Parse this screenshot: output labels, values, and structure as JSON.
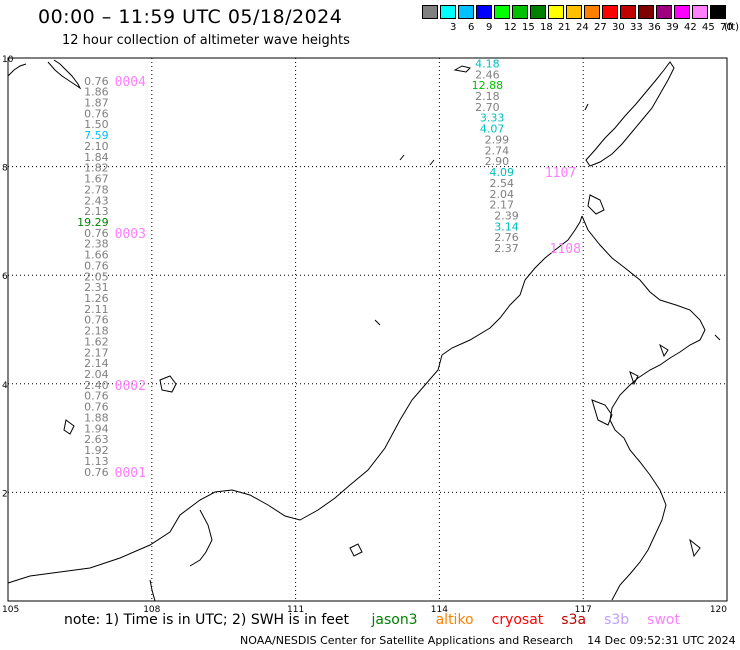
{
  "header": {
    "title": "00:00 – 11:59 UTC 05/18/2024",
    "subtitle": "12 hour collection of altimeter wave heights"
  },
  "scale": {
    "unit": "(ft)",
    "bins": [
      {
        "label": "",
        "color": "#808080"
      },
      {
        "label": "3",
        "color": "#00ffff"
      },
      {
        "label": "6",
        "color": "#00c0ff"
      },
      {
        "label": "9",
        "color": "#0000ff"
      },
      {
        "label": "12",
        "color": "#00ff00"
      },
      {
        "label": "15",
        "color": "#00c000"
      },
      {
        "label": "18",
        "color": "#008000"
      },
      {
        "label": "21",
        "color": "#ffff00"
      },
      {
        "label": "24",
        "color": "#ffc000"
      },
      {
        "label": "27",
        "color": "#ff8000"
      },
      {
        "label": "30",
        "color": "#ff0000"
      },
      {
        "label": "33",
        "color": "#c00000"
      },
      {
        "label": "36",
        "color": "#800000"
      },
      {
        "label": "39",
        "color": "#a00080"
      },
      {
        "label": "42",
        "color": "#ff00ff"
      },
      {
        "label": "45",
        "color": "#ff80ff"
      },
      {
        "label": "70",
        "color": "#000000"
      }
    ]
  },
  "chart_data": {
    "type": "scatter",
    "title": "00:00 – 11:59 UTC 05/18/2024",
    "subtitle": "12 hour collection of altimeter wave heights",
    "x_ticks": [
      "105",
      "108",
      "111",
      "114",
      "117",
      "120"
    ],
    "y_ticks": [
      "10",
      "8",
      "6",
      "4",
      "2"
    ],
    "xlim": [
      105,
      120
    ],
    "ylim": [
      0,
      10
    ],
    "grid": true,
    "track_west": {
      "lon": 107.1,
      "values": [
        {
          "lat": 9.58,
          "v": "0.76",
          "c": "#808080"
        },
        {
          "lat": 9.38,
          "v": "1.86",
          "c": "#808080"
        },
        {
          "lat": 9.18,
          "v": "1.87",
          "c": "#808080"
        },
        {
          "lat": 8.98,
          "v": "0.76",
          "c": "#808080"
        },
        {
          "lat": 8.78,
          "v": "1.50",
          "c": "#808080"
        },
        {
          "lat": 8.58,
          "v": "7.59",
          "c": "#00c0ff"
        },
        {
          "lat": 8.38,
          "v": "2.10",
          "c": "#808080"
        },
        {
          "lat": 8.18,
          "v": "1.84",
          "c": "#808080"
        },
        {
          "lat": 7.98,
          "v": "1.82",
          "c": "#808080"
        },
        {
          "lat": 7.78,
          "v": "1.67",
          "c": "#808080"
        },
        {
          "lat": 7.58,
          "v": "2.78",
          "c": "#808080"
        },
        {
          "lat": 7.38,
          "v": "2.43",
          "c": "#808080"
        },
        {
          "lat": 7.18,
          "v": "2.13",
          "c": "#808080"
        },
        {
          "lat": 6.98,
          "v": "19.29",
          "c": "#008000"
        },
        {
          "lat": 6.78,
          "v": "0.76",
          "c": "#808080"
        },
        {
          "lat": 6.58,
          "v": "2.38",
          "c": "#808080"
        },
        {
          "lat": 6.38,
          "v": "1.66",
          "c": "#808080"
        },
        {
          "lat": 6.18,
          "v": "0.76",
          "c": "#808080"
        },
        {
          "lat": 5.98,
          "v": "2.05",
          "c": "#808080"
        },
        {
          "lat": 5.78,
          "v": "2.31",
          "c": "#808080"
        },
        {
          "lat": 5.58,
          "v": "1.26",
          "c": "#808080"
        },
        {
          "lat": 5.38,
          "v": "2.11",
          "c": "#808080"
        },
        {
          "lat": 5.18,
          "v": "0.76",
          "c": "#808080"
        },
        {
          "lat": 4.98,
          "v": "2.18",
          "c": "#808080"
        },
        {
          "lat": 4.78,
          "v": "1.62",
          "c": "#808080"
        },
        {
          "lat": 4.58,
          "v": "2.17",
          "c": "#808080"
        },
        {
          "lat": 4.38,
          "v": "2.14",
          "c": "#808080"
        },
        {
          "lat": 4.18,
          "v": "2.04",
          "c": "#808080"
        },
        {
          "lat": 3.98,
          "v": "2.40",
          "c": "#808080"
        },
        {
          "lat": 3.78,
          "v": "0.76",
          "c": "#808080"
        },
        {
          "lat": 3.58,
          "v": "0.76",
          "c": "#808080"
        },
        {
          "lat": 3.38,
          "v": "1.88",
          "c": "#808080"
        },
        {
          "lat": 3.18,
          "v": "1.94",
          "c": "#808080"
        },
        {
          "lat": 2.98,
          "v": "2.63",
          "c": "#808080"
        },
        {
          "lat": 2.78,
          "v": "1.92",
          "c": "#808080"
        },
        {
          "lat": 2.58,
          "v": "1.13",
          "c": "#808080"
        },
        {
          "lat": 2.38,
          "v": "0.76",
          "c": "#808080"
        }
      ],
      "passes": [
        {
          "label": "0004",
          "lat": 9.58
        },
        {
          "label": "0003",
          "lat": 6.78
        },
        {
          "label": "0002",
          "lat": 3.98
        },
        {
          "label": "0001",
          "lat": 2.38
        }
      ]
    },
    "track_east": {
      "values": [
        {
          "lon": 115.0,
          "lat": 9.9,
          "v": "4.18",
          "c": "#00c0c0"
        },
        {
          "lon": 115.0,
          "lat": 9.7,
          "v": "2.46",
          "c": "#808080"
        },
        {
          "lon": 115.0,
          "lat": 9.5,
          "v": "12.88",
          "c": "#00c000"
        },
        {
          "lon": 115.0,
          "lat": 9.3,
          "v": "2.18",
          "c": "#808080"
        },
        {
          "lon": 115.0,
          "lat": 9.1,
          "v": "2.70",
          "c": "#808080"
        },
        {
          "lon": 115.1,
          "lat": 8.9,
          "v": "3.33",
          "c": "#00c0c0"
        },
        {
          "lon": 115.1,
          "lat": 8.7,
          "v": "4.07",
          "c": "#00c0c0"
        },
        {
          "lon": 115.2,
          "lat": 8.5,
          "v": "2.99",
          "c": "#808080"
        },
        {
          "lon": 115.2,
          "lat": 8.3,
          "v": "2.74",
          "c": "#808080"
        },
        {
          "lon": 115.2,
          "lat": 8.1,
          "v": "2.90",
          "c": "#808080"
        },
        {
          "lon": 115.3,
          "lat": 7.9,
          "v": "4.09",
          "c": "#00c0c0"
        },
        {
          "lon": 115.3,
          "lat": 7.7,
          "v": "2.54",
          "c": "#808080"
        },
        {
          "lon": 115.3,
          "lat": 7.5,
          "v": "2.04",
          "c": "#808080"
        },
        {
          "lon": 115.3,
          "lat": 7.3,
          "v": "2.17",
          "c": "#808080"
        },
        {
          "lon": 115.4,
          "lat": 7.1,
          "v": "2.39",
          "c": "#808080"
        },
        {
          "lon": 115.4,
          "lat": 6.9,
          "v": "3.14",
          "c": "#00c0c0"
        },
        {
          "lon": 115.4,
          "lat": 6.7,
          "v": "2.76",
          "c": "#808080"
        },
        {
          "lon": 115.4,
          "lat": 6.5,
          "v": "2.37",
          "c": "#808080"
        }
      ],
      "passes": [
        {
          "label": "1107",
          "lon": 116.2,
          "lat": 7.9
        },
        {
          "label": "1108",
          "lon": 116.3,
          "lat": 6.5
        }
      ]
    }
  },
  "note": {
    "prefix": "note:  1) Time is in UTC; 2) SWH is in feet",
    "satellites": [
      {
        "name": "jason3",
        "color": "#008000"
      },
      {
        "name": "altiko",
        "color": "#ff8000"
      },
      {
        "name": "cryosat",
        "color": "#ff0000"
      },
      {
        "name": "s3a",
        "color": "#c00000"
      },
      {
        "name": "s3b",
        "color": "#c0a0ff"
      },
      {
        "name": "swot",
        "color": "#ff80ff"
      }
    ]
  },
  "footer": {
    "credit": "NOAA/NESDIS Center for Satellite Applications and Research",
    "timestamp": "14 Dec 09:52:31 UTC 2024"
  }
}
